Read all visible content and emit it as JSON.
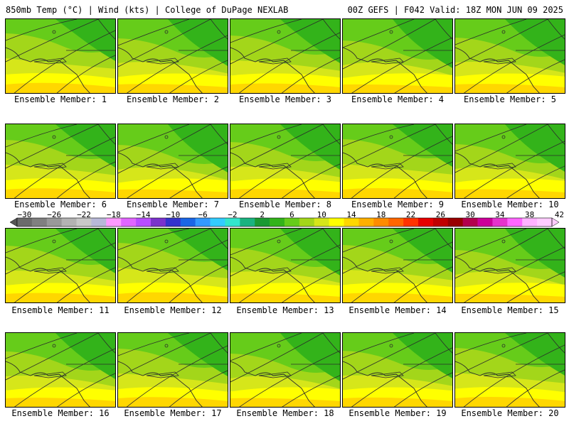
{
  "header": {
    "left": "850mb Temp (°C) | Wind (kts) | College of DuPage NEXLAB",
    "right": "00Z GEFS | F042 Valid: 18Z MON JUN 09 2025"
  },
  "panel_label_prefix": "Ensemble Member:",
  "members": [
    {
      "n": "1"
    },
    {
      "n": "2"
    },
    {
      "n": "3"
    },
    {
      "n": "4"
    },
    {
      "n": "5"
    },
    {
      "n": "6"
    },
    {
      "n": "7"
    },
    {
      "n": "8"
    },
    {
      "n": "9"
    },
    {
      "n": "10"
    },
    {
      "n": "11"
    },
    {
      "n": "12"
    },
    {
      "n": "13"
    },
    {
      "n": "14"
    },
    {
      "n": "15"
    },
    {
      "n": "16"
    },
    {
      "n": "17"
    },
    {
      "n": "18"
    },
    {
      "n": "19"
    },
    {
      "n": "20"
    }
  ],
  "colorbar": {
    "tick_labels": [
      "−30",
      "−26",
      "−22",
      "−18",
      "−14",
      "−10",
      "−6",
      "−2",
      "2",
      "6",
      "10",
      "14",
      "18",
      "22",
      "26",
      "30",
      "34",
      "38",
      "42"
    ],
    "colors": [
      "#6b6b6b",
      "#808080",
      "#999999",
      "#b3b3b3",
      "#c8c8c8",
      "#b8b8d8",
      "#ff99ff",
      "#e066ff",
      "#b84dff",
      "#7a33cc",
      "#3333cc",
      "#1a66e6",
      "#3399ff",
      "#33ccff",
      "#33e6cc",
      "#1ab380",
      "#1a9933",
      "#33b31a",
      "#66cc1a",
      "#a3d61a",
      "#d6e61a",
      "#ffff00",
      "#ffd700",
      "#ffb000",
      "#ff8c00",
      "#ff6600",
      "#ff3300",
      "#e60000",
      "#c00000",
      "#990000",
      "#b3004d",
      "#cc0099",
      "#e633cc",
      "#ff66ff",
      "#ffb3ff",
      "#ffccff"
    ]
  }
}
